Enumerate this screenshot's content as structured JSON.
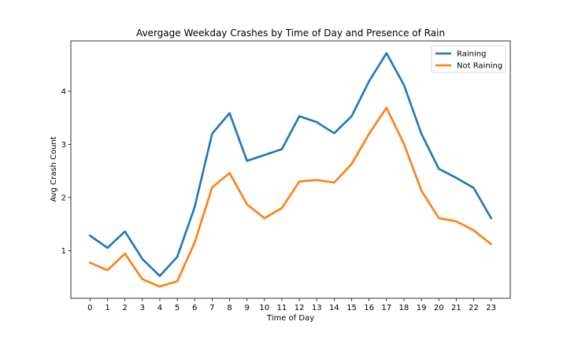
{
  "chart_data": {
    "type": "line",
    "title": "Avergage Weekday Crashes by Time of Day and Presence of Rain",
    "xlabel": "Time of Day",
    "ylabel": "Avg Crash Count",
    "x": [
      0,
      1,
      2,
      3,
      4,
      5,
      6,
      7,
      8,
      9,
      10,
      11,
      12,
      13,
      14,
      15,
      16,
      17,
      18,
      19,
      20,
      21,
      22,
      23
    ],
    "xticks": [
      "0",
      "1",
      "2",
      "3",
      "4",
      "5",
      "6",
      "7",
      "8",
      "9",
      "10",
      "11",
      "12",
      "13",
      "14",
      "15",
      "16",
      "17",
      "18",
      "19",
      "20",
      "21",
      "22",
      "23"
    ],
    "yticks": [
      "1",
      "2",
      "3",
      "4"
    ],
    "ytick_values": [
      1,
      2,
      3,
      4
    ],
    "xlim": [
      -1.1,
      24.1
    ],
    "ylim": [
      0.1,
      4.95
    ],
    "grid": false,
    "legend_position": "top-right",
    "series": [
      {
        "name": "Raining",
        "color": "#1f77b4",
        "values": [
          1.28,
          1.05,
          1.36,
          0.84,
          0.52,
          0.88,
          1.82,
          3.2,
          3.59,
          2.69,
          2.8,
          2.91,
          3.53,
          3.42,
          3.21,
          3.53,
          4.19,
          4.72,
          4.12,
          3.2,
          2.54,
          2.37,
          2.18,
          1.61
        ]
      },
      {
        "name": "Not Raining",
        "color": "#ff7f0e",
        "values": [
          0.77,
          0.63,
          0.94,
          0.46,
          0.32,
          0.42,
          1.15,
          2.19,
          2.46,
          1.87,
          1.61,
          1.8,
          2.3,
          2.33,
          2.28,
          2.63,
          3.2,
          3.69,
          3.01,
          2.13,
          1.61,
          1.55,
          1.38,
          1.12
        ]
      }
    ]
  }
}
